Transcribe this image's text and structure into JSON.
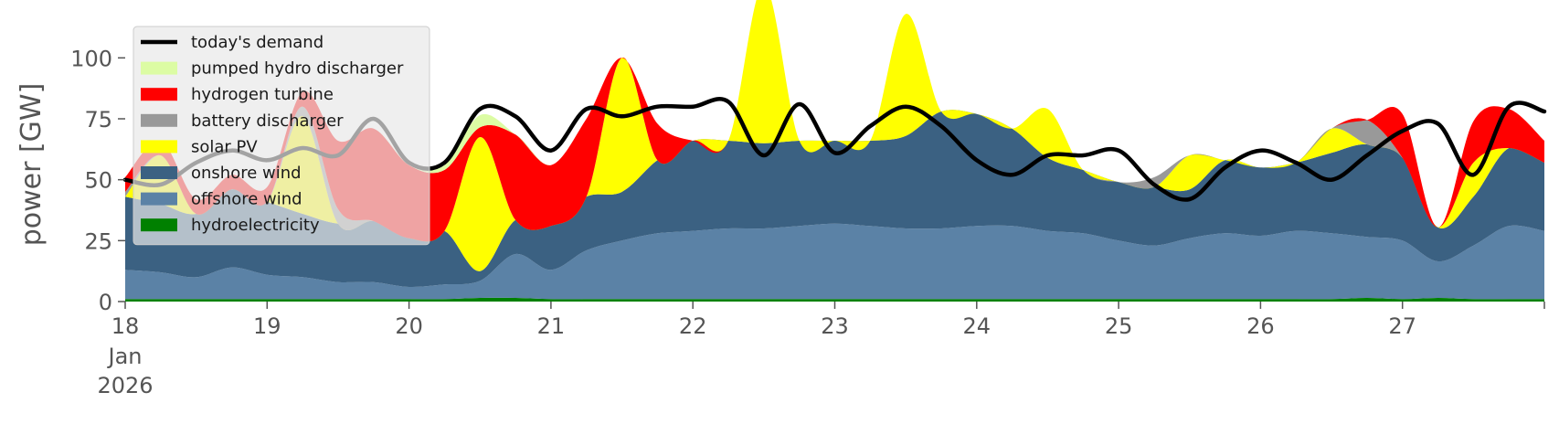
{
  "chart_data": {
    "type": "area",
    "ylabel": "power [GW]",
    "ylim": [
      0,
      120
    ],
    "yticks": [
      0,
      25,
      50,
      75,
      100
    ],
    "ytick_labels": [
      "0",
      "25",
      "50",
      "75",
      "100"
    ],
    "xlim": [
      0,
      10
    ],
    "xticks": [
      0,
      1,
      2,
      3,
      4,
      5,
      6,
      7,
      8,
      9
    ],
    "xtick_labels": [
      "18",
      "19",
      "20",
      "21",
      "22",
      "23",
      "24",
      "25",
      "26",
      "27"
    ],
    "x_first_tick_sublabels": [
      "Jan",
      "2026"
    ],
    "legend_position": "upper-left",
    "grid": false,
    "x": [
      0,
      0.25,
      0.5,
      0.75,
      1,
      1.25,
      1.5,
      1.75,
      2,
      2.25,
      2.5,
      2.75,
      3,
      3.25,
      3.5,
      3.75,
      4,
      4.25,
      4.5,
      4.75,
      5,
      5.25,
      5.5,
      5.75,
      6,
      6.25,
      6.5,
      6.75,
      7,
      7.25,
      7.5,
      7.75,
      8,
      8.25,
      8.5,
      8.75,
      9,
      9.25,
      9.5,
      9.75,
      10
    ],
    "stack_order": [
      "hydroelectricity",
      "offshore wind",
      "onshore wind",
      "solar PV",
      "battery discharger",
      "hydrogen turbine",
      "pumped hydro discharger"
    ],
    "series": [
      {
        "name": "hydroelectricity",
        "color": "#008000",
        "values": [
          1,
          1,
          1,
          1,
          1,
          1,
          1,
          1,
          1,
          1,
          1.5,
          1.5,
          1,
          1,
          1,
          1,
          1,
          1,
          1,
          1,
          1,
          1,
          1,
          1,
          1,
          1,
          1,
          1,
          1,
          1,
          1,
          1,
          1,
          1,
          1,
          1.5,
          1,
          1.5,
          1,
          1,
          1
        ]
      },
      {
        "name": "offshore wind",
        "color": "#5b82a6",
        "values": [
          12,
          11,
          9,
          13,
          10,
          9,
          7,
          7,
          5,
          6,
          7,
          18,
          12,
          20,
          24,
          27,
          28,
          29,
          29,
          30,
          31,
          30,
          29,
          29,
          30,
          30,
          28,
          27,
          24,
          22,
          25,
          27,
          26,
          28,
          27,
          25,
          24,
          15,
          22,
          30,
          28
        ]
      },
      {
        "name": "onshore wind",
        "color": "#3b6182",
        "values": [
          30,
          28,
          26,
          32,
          30,
          26,
          24,
          25,
          20,
          22,
          4,
          14,
          18,
          22,
          20,
          30,
          37,
          36,
          35,
          35,
          34,
          35,
          38,
          48,
          46,
          40,
          30,
          26,
          24,
          24,
          20,
          30,
          28,
          28,
          33,
          38,
          34,
          14,
          20,
          32,
          28
        ]
      },
      {
        "name": "solar PV",
        "color": "#ffff00",
        "values": [
          0,
          20,
          0,
          0,
          0,
          40,
          0,
          0,
          0,
          0,
          55,
          0,
          0,
          0,
          55,
          0,
          0,
          0,
          65,
          0,
          0,
          0,
          50,
          0,
          0,
          0,
          20,
          0,
          0,
          0,
          14,
          0,
          0,
          0,
          10,
          0,
          0,
          0,
          14,
          0,
          0
        ]
      },
      {
        "name": "battery discharger",
        "color": "#999999",
        "values": [
          2,
          0,
          0,
          0,
          0,
          4,
          6,
          0,
          0,
          0,
          0,
          0,
          0,
          0,
          0,
          0,
          0,
          0,
          0,
          0,
          0,
          0,
          0,
          0,
          0,
          0,
          0,
          0,
          0,
          4,
          0,
          0,
          0,
          0,
          0,
          10,
          0,
          0,
          0,
          0,
          0
        ]
      },
      {
        "name": "hydrogen turbine",
        "color": "#ff0000",
        "values": [
          6,
          6,
          6,
          6,
          6,
          6,
          28,
          38,
          30,
          25,
          4,
          35,
          25,
          32,
          0,
          15,
          0,
          0,
          0,
          0,
          0,
          0,
          0,
          0,
          0,
          0,
          0,
          0,
          0,
          0,
          0,
          0,
          0,
          0,
          0,
          0,
          18,
          0,
          17,
          16,
          9
        ]
      },
      {
        "name": "pumped hydro discharger",
        "color": "#dcfca4",
        "values": [
          0,
          0,
          0,
          0,
          0,
          0,
          0,
          0,
          0,
          2,
          5,
          0,
          0,
          0,
          0,
          0,
          0,
          0,
          0,
          0,
          0,
          0,
          0,
          0,
          0,
          0,
          0,
          0,
          0,
          0,
          0,
          0,
          0,
          0,
          0,
          0,
          0,
          0,
          0,
          0,
          0
        ]
      },
      {
        "name": "today's demand",
        "color": "#000000",
        "line": true,
        "values": [
          50,
          48,
          57,
          62,
          58,
          63,
          60,
          75,
          57,
          57,
          79,
          76,
          62,
          79,
          76,
          80,
          80,
          82,
          60,
          81,
          61,
          72,
          80,
          72,
          58,
          52,
          60,
          60,
          62,
          48,
          42,
          55,
          62,
          57,
          50,
          60,
          70,
          73,
          52,
          80,
          78
        ]
      }
    ]
  }
}
